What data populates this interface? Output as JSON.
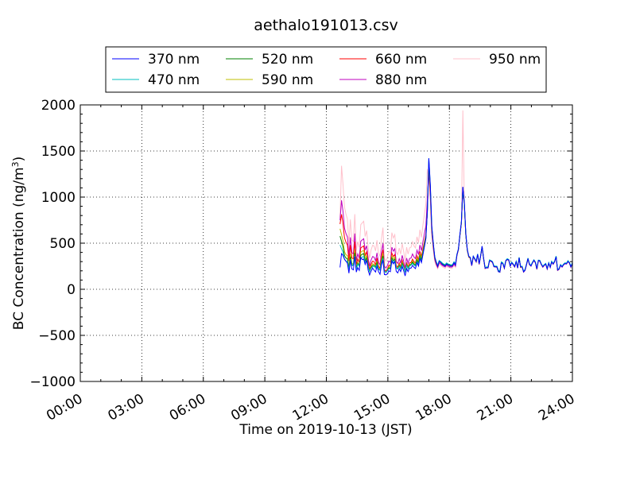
{
  "chart_data": {
    "type": "line",
    "title": "aethalo191013.csv",
    "xlabel": "Time on 2019-10-13 (JST)",
    "ylabel_main": "BC Concentration (ng/m",
    "ylabel_sup": "3",
    "ylabel_end": ")",
    "xlim": [
      "00:00",
      "24:00"
    ],
    "ylim": [
      -1000,
      2000
    ],
    "xticks": [
      "00:00",
      "03:00",
      "06:00",
      "09:00",
      "12:00",
      "15:00",
      "18:00",
      "21:00",
      "24:00"
    ],
    "yticks": [
      "−1000",
      "−500",
      "0",
      "500",
      "1000",
      "1500",
      "2000"
    ],
    "grid": true,
    "legend": "top, outside plot area",
    "series": [
      {
        "name": "370 nm",
        "color": "#0000ff",
        "y": [
          237,
          387,
          368,
          327,
          305,
          283,
          174,
          316,
          221,
          211,
          356,
          186,
          234,
          205,
          346,
          322,
          328,
          269,
          316,
          206,
          154,
          197,
          229,
          208,
          187,
          249,
          192,
          163,
          260,
          316,
          160,
          157,
          167,
          200,
          191,
          307,
          276,
          301,
          195,
          178,
          222,
          191,
          247,
          201,
          145,
          224,
          191,
          230,
          229,
          259,
          238,
          224,
          290,
          252,
          333,
          290,
          376,
          460,
          552,
          838,
          1421,
          1133,
          690,
          502,
          346,
          292,
          247,
          303,
          292,
          271,
          261,
          251,
          274,
          261,
          258,
          249,
          255,
          289,
          260,
          375,
          435,
          593,
          735,
          1112,
          938,
          612,
          433,
          358,
          345,
          257,
          357,
          330,
          300,
          379,
          275,
          363,
          468,
          335,
          229,
          233,
          233,
          309,
          309,
          293,
          245,
          243,
          244,
          190,
          186,
          287,
          278,
          230,
          309,
          324,
          319,
          251,
          288,
          270,
          244,
          303,
          229,
          342,
          244,
          243,
          189,
          206,
          269,
          333,
          270,
          253,
          286,
          315,
          288,
          220,
          312,
          308,
          270,
          243,
          262,
          273,
          221,
          283,
          237,
          296,
          274,
          302,
          352,
          208,
          218,
          261,
          242,
          266,
          279,
          277,
          302,
          286,
          242,
          284
        ]
      },
      {
        "name": "470 nm",
        "color": "#00bfbf",
        "y": [
          480,
          440,
          403,
          324,
          304,
          299,
          214,
          325,
          256,
          259,
          361,
          214,
          271,
          250,
          337,
          349,
          355,
          288,
          315,
          241,
          194,
          228,
          241,
          252,
          230,
          269,
          218,
          205,
          282,
          336,
          201,
          183,
          203,
          221,
          222,
          316,
          291,
          307,
          231,
          220,
          248,
          220,
          268,
          238,
          191,
          258,
          222,
          253,
          263,
          279,
          262,
          253,
          297,
          270,
          342,
          300,
          383,
          463,
          552,
          838,
          1421,
          1123,
          682,
          496,
          353,
          300,
          263,
          313,
          302,
          286,
          275,
          268,
          286,
          275,
          270,
          264,
          268,
          299,
          276,
          382,
          437,
          592,
          731,
          1104,
          928,
          601,
          428,
          358,
          347,
          268,
          360,
          337,
          307,
          384,
          280,
          370,
          465,
          339,
          235,
          243,
          241,
          319,
          312,
          301,
          255,
          253,
          251,
          206,
          197,
          297,
          289,
          238,
          314,
          333,
          322,
          263,
          295,
          275,
          252,
          305,
          241,
          347,
          247,
          252,
          197,
          215,
          276,
          339,
          276,
          262,
          294,
          320,
          296,
          226,
          316,
          315,
          277,
          250,
          268,
          281,
          229,
          290,
          246,
          305,
          281,
          309,
          360,
          215,
          226,
          270,
          250,
          274,
          287,
          284,
          311,
          292,
          249,
          291
        ]
      },
      {
        "name": "520 nm",
        "color": "#008000",
        "y": [
          577,
          520,
          462,
          366,
          340,
          329,
          227,
          354,
          266,
          264,
          395,
          221,
          281,
          253,
          368,
          379,
          386,
          307,
          340,
          250,
          193,
          236,
          258,
          260,
          235,
          288,
          223,
          208,
          299,
          362,
          200,
          183,
          204,
          231,
          228,
          338,
          310,
          327,
          235,
          223,
          258,
          224,
          281,
          242,
          188,
          265,
          226,
          261,
          268,
          293,
          271,
          261,
          319,
          286,
          364,
          318,
          402,
          479,
          565,
          833,
          1386,
          1096,
          667,
          487,
          344,
          291,
          254,
          307,
          295,
          279,
          268,
          261,
          281,
          269,
          264,
          257,
          262,
          294,
          269,
          378,
          434,
          588,
          726,
          1099,
          923,
          597,
          425,
          354,
          343,
          263,
          356,
          333,
          302,
          381,
          276,
          367,
          463,
          336,
          231,
          239,
          237,
          316,
          308,
          297,
          251,
          248,
          246,
          201,
          192,
          293,
          284,
          234,
          311,
          329,
          319,
          258,
          291,
          272,
          248,
          302,
          237,
          344,
          243,
          248,
          193,
          211,
          272,
          336,
          273,
          258,
          291,
          317,
          293,
          222,
          313,
          311,
          273,
          246,
          265,
          277,
          225,
          286,
          242,
          301,
          277,
          305,
          356,
          211,
          222,
          266,
          246,
          270,
          283,
          280,
          307,
          288,
          245,
          287
        ]
      },
      {
        "name": "590 nm",
        "color": "#bfbf00",
        "y": [
          656,
          594,
          528,
          409,
          376,
          364,
          236,
          389,
          282,
          275,
          436,
          228,
          295,
          259,
          402,
          414,
          421,
          330,
          369,
          261,
          193,
          246,
          278,
          270,
          241,
          308,
          230,
          211,
          319,
          392,
          200,
          181,
          205,
          243,
          236,
          362,
          330,
          349,
          240,
          226,
          268,
          229,
          296,
          246,
          186,
          273,
          230,
          270,
          275,
          309,
          281,
          269,
          342,
          303,
          388,
          338,
          423,
          497,
          580,
          834,
          1360,
          1074,
          655,
          478,
          338,
          285,
          248,
          302,
          290,
          274,
          263,
          256,
          277,
          264,
          260,
          252,
          258,
          290,
          264,
          375,
          432,
          586,
          723,
          1097,
          920,
          595,
          423,
          352,
          341,
          260,
          354,
          331,
          300,
          380,
          274,
          365,
          462,
          334,
          229,
          237,
          235,
          314,
          306,
          295,
          249,
          246,
          244,
          199,
          190,
          291,
          282,
          232,
          309,
          327,
          317,
          256,
          289,
          270,
          246,
          300,
          235,
          342,
          241,
          246,
          191,
          209,
          270,
          334,
          271,
          256,
          289,
          315,
          291,
          220,
          311,
          309,
          271,
          244,
          263,
          275,
          223,
          284,
          240,
          299,
          275,
          303,
          354,
          209,
          220,
          264,
          244,
          268,
          281,
          278,
          305,
          286,
          243,
          285
        ]
      },
      {
        "name": "660 nm",
        "color": "#ff0000",
        "y": [
          707,
          813,
          716,
          559,
          512,
          480,
          306,
          480,
          340,
          330,
          518,
          266,
          330,
          291,
          448,
          460,
          471,
          366,
          406,
          289,
          215,
          272,
          305,
          300,
          265,
          340,
          249,
          228,
          349,
          428,
          216,
          196,
          220,
          261,
          253,
          392,
          355,
          377,
          257,
          240,
          285,
          243,
          316,
          261,
          196,
          290,
          243,
          286,
          291,
          328,
          298,
          285,
          363,
          321,
          411,
          358,
          444,
          514,
          591,
          830,
          1338,
          1054,
          646,
          472,
          335,
          282,
          246,
          300,
          288,
          272,
          261,
          254,
          275,
          262,
          258,
          250,
          256,
          288,
          262,
          373,
          430,
          584,
          720,
          1094,
          916,
          592,
          421,
          350,
          339,
          258,
          352,
          329,
          298,
          378,
          272,
          363,
          460,
          332,
          227,
          235,
          233,
          312,
          304,
          293,
          247,
          244,
          242,
          197,
          188,
          289,
          280,
          230,
          307,
          325,
          315,
          254,
          287,
          268,
          244,
          298,
          233,
          340,
          239,
          244,
          189,
          207,
          268,
          332,
          269,
          254,
          287,
          313,
          289,
          218,
          309,
          307,
          269,
          242,
          261,
          273,
          221,
          282,
          238,
          297,
          273,
          301,
          352,
          207,
          218,
          262,
          242,
          266,
          279,
          276,
          303,
          284,
          241,
          283
        ]
      },
      {
        "name": "880 nm",
        "color": "#bf00bf",
        "y": [
          748,
          965,
          849,
          664,
          607,
          566,
          361,
          563,
          397,
          384,
          605,
          310,
          384,
          338,
          521,
          535,
          548,
          425,
          472,
          337,
          251,
          317,
          355,
          349,
          309,
          395,
          290,
          266,
          406,
          497,
          252,
          229,
          257,
          304,
          295,
          457,
          414,
          440,
          300,
          280,
          332,
          283,
          368,
          304,
          229,
          339,
          284,
          334,
          340,
          383,
          348,
          333,
          423,
          375,
          480,
          418,
          518,
          600,
          690,
          969,
          1275,
          1004,
          615,
          450,
          320,
          269,
          235,
          286,
          275,
          260,
          249,
          242,
          263,
          250,
          246,
          239,
          245,
          275,
          251,
          369,
          428,
          582,
          719,
          1094,
          914,
          590,
          419,
          348,
          337,
          256,
          350,
          327,
          296,
          376,
          270,
          361,
          458,
          330,
          225,
          233,
          231,
          310,
          302,
          291,
          245,
          242,
          240,
          195,
          186,
          287,
          278,
          228,
          305,
          323,
          313,
          252,
          285,
          266,
          242,
          296,
          231,
          338,
          237,
          242,
          187,
          205,
          266,
          330,
          267,
          252,
          285,
          311,
          287,
          216,
          307,
          305,
          267,
          240,
          259,
          271,
          219,
          280,
          236,
          295,
          271,
          299,
          350,
          205,
          216,
          260,
          240,
          264,
          277,
          274,
          301,
          282,
          239,
          281
        ]
      },
      {
        "name": "950 nm",
        "color": "#ffc0cb",
        "y": [
          780,
          1340,
          1143,
          894,
          817,
          762,
          486,
          758,
          534,
          517,
          815,
          418,
          517,
          455,
          701,
          720,
          738,
          572,
          636,
          454,
          338,
          427,
          478,
          470,
          416,
          532,
          391,
          358,
          547,
          669,
          339,
          308,
          346,
          409,
          397,
          615,
          557,
          592,
          404,
          377,
          447,
          381,
          495,
          409,
          308,
          456,
          382,
          449,
          458,
          516,
          468,
          448,
          569,
          505,
          646,
          563,
          697,
          808,
          929,
          1304,
          1203,
          947,
          580,
          425,
          302,
          254,
          222,
          270,
          260,
          245,
          235,
          228,
          248,
          236,
          232,
          225,
          231,
          260,
          237,
          364,
          426,
          580,
          717,
          1940,
          912,
          588,
          417,
          346,
          335,
          254,
          348,
          325,
          294,
          374,
          268,
          359,
          456,
          328,
          223,
          231,
          229,
          308,
          300,
          289,
          243,
          240,
          238,
          193,
          184,
          285,
          276,
          226,
          303,
          321,
          311,
          250,
          283,
          264,
          240,
          294,
          229,
          336,
          235,
          240,
          185,
          203,
          264,
          328,
          265,
          250,
          283,
          309,
          285,
          214,
          305,
          303,
          265,
          238,
          257,
          269,
          217,
          278,
          234,
          293,
          269,
          297,
          348,
          203,
          214,
          258,
          238,
          262,
          275,
          272,
          299,
          280,
          237,
          279
        ]
      }
    ]
  },
  "legend": {
    "title": ""
  }
}
